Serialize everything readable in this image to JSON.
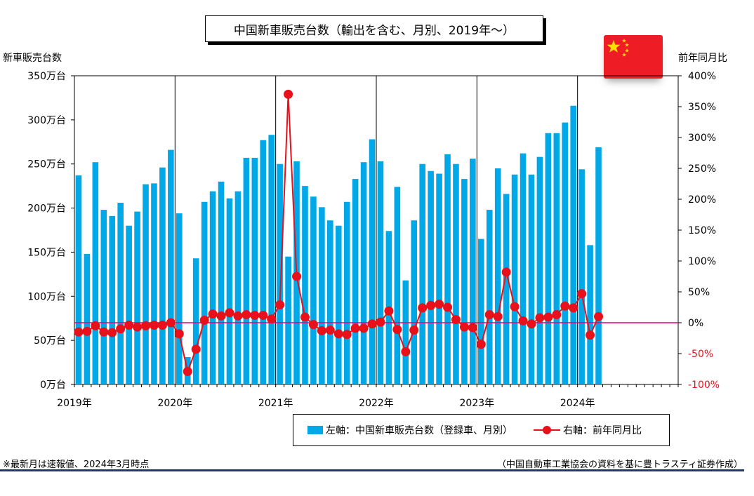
{
  "title": "中国新車販売台数（輸出を含む、月別、2019年～）",
  "left_axis_title": "新車販売台数",
  "right_axis_title": "前年同月比",
  "legend": {
    "bar_label": "左軸：中国新車販売台数（登録車、月別）",
    "line_label": "右軸：前年同月比"
  },
  "footnote": "※最新月は速報値、2024年3月時点",
  "source": "（中国自動車工業協会の資料を基に豊トラスティ証券作成）",
  "flag_icon": "china-flag-icon",
  "colors": {
    "bar": "#00a8e8",
    "line": "#e8101a",
    "zero_line": "#e6007e"
  },
  "chart_data": {
    "type": "bar+line",
    "left_axis": {
      "ylim": [
        0,
        350
      ],
      "ticks": [
        0,
        50,
        100,
        150,
        200,
        250,
        300,
        350
      ],
      "tick_labels": [
        "0万台",
        "50万台",
        "100万台",
        "150万台",
        "200万台",
        "250万台",
        "300万台",
        "350万台"
      ]
    },
    "right_axis": {
      "ylim": [
        -100,
        400
      ],
      "ticks": [
        -100,
        -50,
        0,
        50,
        100,
        150,
        200,
        250,
        300,
        350,
        400
      ],
      "tick_labels": [
        "-100%",
        "-50%",
        "0%",
        "50%",
        "100%",
        "150%",
        "200%",
        "250%",
        "300%",
        "350%",
        "400%"
      ]
    },
    "year_labels": [
      "2019年",
      "2020年",
      "2021年",
      "2022年",
      "2023年",
      "2024年"
    ],
    "months_total": 72,
    "series": [
      {
        "name": "左軸：中国新車販売台数（登録車、月別）",
        "axis": "left",
        "unit": "万台",
        "values": [
          237,
          148,
          252,
          198,
          191,
          206,
          180,
          196,
          227,
          228,
          246,
          266,
          194,
          31,
          143,
          207,
          219,
          230,
          211,
          219,
          257,
          257,
          277,
          283,
          250,
          145,
          253,
          225,
          213,
          201,
          186,
          180,
          207,
          233,
          252,
          278,
          253,
          174,
          224,
          118,
          186,
          250,
          242,
          239,
          261,
          250,
          233,
          256,
          165,
          198,
          245,
          216,
          238,
          262,
          238,
          258,
          285,
          285,
          297,
          316,
          244,
          158,
          269
        ]
      },
      {
        "name": "右軸：前年同月比",
        "axis": "right",
        "unit": "%",
        "values": [
          -15,
          -14,
          -5,
          -15,
          -16,
          -10,
          -4,
          -7,
          -5,
          -4,
          -4,
          0,
          -18,
          -79,
          -43,
          4,
          14,
          11,
          16,
          11,
          13,
          12,
          12,
          6,
          29,
          370,
          75,
          9,
          -3,
          -13,
          -12,
          -18,
          -19,
          -9,
          -9,
          -2,
          1,
          19,
          -11,
          -47,
          -12,
          24,
          28,
          30,
          25,
          5,
          -7,
          -8,
          -35,
          13,
          10,
          82,
          26,
          3,
          -2,
          8,
          9,
          13,
          27,
          24,
          47,
          -20,
          10
        ]
      }
    ]
  }
}
